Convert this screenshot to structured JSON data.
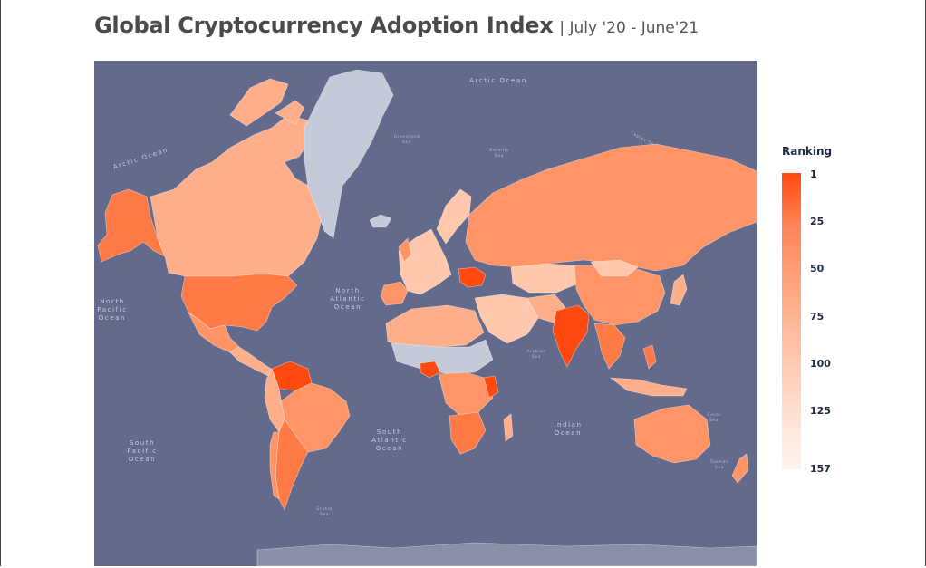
{
  "header": {
    "title": "Global Cryptocurrency Adoption Index",
    "subtitle": "| July '20 - June'21"
  },
  "map": {
    "colors": {
      "ocean": "#636a8c",
      "no_data": "#c5cad8",
      "rank_top": "#ff4a0f",
      "rank_high": "#ff7a45",
      "rank_mid": "#ff9466",
      "rank_lowmid": "#ffae8a",
      "rank_low": "#ffc8ad",
      "rank_bottom": "#ffe2d4",
      "land_line": "#8a8fa8"
    },
    "ocean_labels": {
      "arctic_top": "Arctic Ocean",
      "arctic_left": "Arctic Ocean",
      "north_pacific_1": "North",
      "north_pacific_2": "Pacific",
      "north_pacific_3": "Ocean",
      "north_atlantic_1": "North",
      "north_atlantic_2": "Atlantic",
      "north_atlantic_3": "Ocean",
      "south_atlantic_1": "South",
      "south_atlantic_2": "Atlantic",
      "south_atlantic_3": "Ocean",
      "south_pacific_1": "South",
      "south_pacific_2": "Pacific",
      "south_pacific_3": "Ocean",
      "indian_1": "Indian",
      "indian_2": "Ocean"
    },
    "sea_labels": {
      "greenland_1": "Greenland",
      "greenland_2": "Sea",
      "barents_1": "Barents",
      "barents_2": "Sea",
      "laptev": "Laptev Sea",
      "arabian_1": "Arabian",
      "arabian_2": "Sea",
      "coral_1": "Coral",
      "coral_2": "Sea",
      "tasman_1": "Tasman",
      "tasman_2": "Sea",
      "scotia_1": "Scotia",
      "scotia_2": "Sea"
    }
  },
  "legend": {
    "title": "Ranking",
    "ticks": [
      "1",
      "25",
      "50",
      "75",
      "100",
      "125",
      "157"
    ]
  }
}
